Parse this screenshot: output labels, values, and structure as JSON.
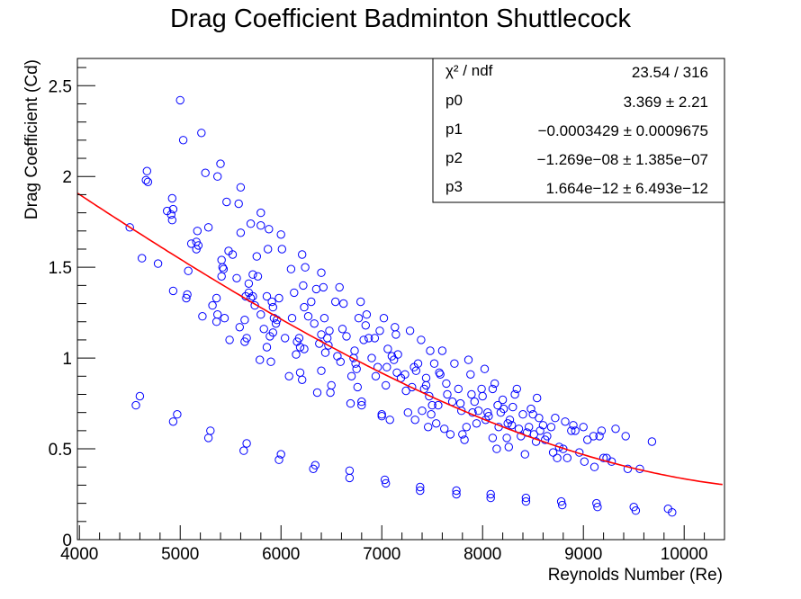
{
  "chart_data": {
    "type": "scatter",
    "title": "Drag Coefficient Badminton Shuttlecock",
    "xlabel": "Reynolds Number (Re)",
    "ylabel": "Drag Coefficient (Cd)",
    "xlim": [
      3980,
      10400
    ],
    "ylim": [
      0,
      2.65
    ],
    "x_ticks": [
      4000,
      5000,
      6000,
      7000,
      8000,
      9000,
      10000
    ],
    "x_tick_labels": [
      "4000",
      "5000",
      "6000",
      "7000",
      "8000",
      "9000",
      "10000"
    ],
    "y_ticks": [
      0,
      0.5,
      1,
      1.5,
      2,
      2.5
    ],
    "y_tick_labels": [
      "0",
      "0.5",
      "1",
      "1.5",
      "2",
      "2.5"
    ],
    "grid": false,
    "colors": {
      "points": "#0000ff",
      "fit": "#ff0000",
      "axes": "#000000"
    },
    "fit": {
      "name": "pol3",
      "p0": 3.369,
      "p1": -0.0003429,
      "p2": -1.269e-08,
      "p3": 1.664e-12,
      "x_range": [
        3980,
        10380
      ]
    },
    "stats_box": {
      "placement": "top-right",
      "rows": [
        {
          "label": "χ² / ndf",
          "value": "23.54 / 316"
        },
        {
          "label": "p0",
          "value": "3.369 ±  2.21"
        },
        {
          "label": "p1",
          "value": "−0.0003429 ± 0.0009675"
        },
        {
          "label": "p2",
          "value": "−1.269e−08 ± 1.385e−07"
        },
        {
          "label": "p3",
          "value": "1.664e−12 ± 6.493e−12"
        }
      ]
    },
    "points": [
      [
        4500,
        1.72
      ],
      [
        4560,
        0.74
      ],
      [
        4600,
        0.79
      ],
      [
        4620,
        1.55
      ],
      [
        4660,
        1.98
      ],
      [
        4670,
        2.03
      ],
      [
        4680,
        1.97
      ],
      [
        4780,
        1.52
      ],
      [
        4870,
        1.81
      ],
      [
        4910,
        1.79
      ],
      [
        4920,
        1.88
      ],
      [
        4920,
        1.76
      ],
      [
        4930,
        1.82
      ],
      [
        4930,
        1.37
      ],
      [
        4930,
        0.65
      ],
      [
        4970,
        0.69
      ],
      [
        5000,
        2.42
      ],
      [
        5030,
        2.2
      ],
      [
        5060,
        1.33
      ],
      [
        5070,
        1.35
      ],
      [
        5080,
        1.48
      ],
      [
        5110,
        1.63
      ],
      [
        5160,
        1.64
      ],
      [
        5160,
        1.6
      ],
      [
        5170,
        1.7
      ],
      [
        5180,
        1.62
      ],
      [
        5210,
        2.24
      ],
      [
        5220,
        1.23
      ],
      [
        5250,
        2.02
      ],
      [
        5280,
        1.72
      ],
      [
        5280,
        0.56
      ],
      [
        5300,
        0.6
      ],
      [
        5320,
        1.29
      ],
      [
        5360,
        1.33
      ],
      [
        5360,
        1.2
      ],
      [
        5370,
        1.24
      ],
      [
        5370,
        2.0
      ],
      [
        5400,
        2.07
      ],
      [
        5410,
        1.54
      ],
      [
        5410,
        1.45
      ],
      [
        5420,
        1.5
      ],
      [
        5430,
        1.49
      ],
      [
        5440,
        1.22
      ],
      [
        5460,
        1.86
      ],
      [
        5480,
        1.59
      ],
      [
        5490,
        1.1
      ],
      [
        5520,
        1.57
      ],
      [
        5560,
        1.44
      ],
      [
        5580,
        1.85
      ],
      [
        5590,
        1.17
      ],
      [
        5600,
        1.94
      ],
      [
        5600,
        1.69
      ],
      [
        5630,
        0.49
      ],
      [
        5640,
        1.21
      ],
      [
        5640,
        1.09
      ],
      [
        5650,
        1.34
      ],
      [
        5660,
        0.53
      ],
      [
        5660,
        1.11
      ],
      [
        5680,
        1.41
      ],
      [
        5680,
        1.36
      ],
      [
        5700,
        1.33
      ],
      [
        5700,
        1.74
      ],
      [
        5720,
        1.34
      ],
      [
        5720,
        1.46
      ],
      [
        5740,
        1.29
      ],
      [
        5760,
        1.56
      ],
      [
        5770,
        1.45
      ],
      [
        5790,
        0.99
      ],
      [
        5800,
        1.24
      ],
      [
        5800,
        1.8
      ],
      [
        5800,
        1.73
      ],
      [
        5830,
        1.16
      ],
      [
        5860,
        1.06
      ],
      [
        5860,
        1.34
      ],
      [
        5870,
        1.6
      ],
      [
        5880,
        1.71
      ],
      [
        5890,
        1.12
      ],
      [
        5900,
        0.98
      ],
      [
        5910,
        1.31
      ],
      [
        5920,
        1.28
      ],
      [
        5920,
        1.14
      ],
      [
        5930,
        1.22
      ],
      [
        5950,
        1.19
      ],
      [
        5960,
        1.21
      ],
      [
        5980,
        0.44
      ],
      [
        5980,
        1.33
      ],
      [
        6000,
        0.47
      ],
      [
        6000,
        1.68
      ],
      [
        6010,
        1.6
      ],
      [
        6040,
        1.11
      ],
      [
        6080,
        0.9
      ],
      [
        6100,
        1.49
      ],
      [
        6110,
        1.22
      ],
      [
        6130,
        1.36
      ],
      [
        6150,
        1.02
      ],
      [
        6160,
        1.09
      ],
      [
        6180,
        1.11
      ],
      [
        6190,
        0.92
      ],
      [
        6190,
        1.06
      ],
      [
        6210,
        1.57
      ],
      [
        6210,
        0.88
      ],
      [
        6220,
        1.4
      ],
      [
        6230,
        1.28
      ],
      [
        6230,
        1.05
      ],
      [
        6240,
        1.5
      ],
      [
        6270,
        1.23
      ],
      [
        6300,
        1.31
      ],
      [
        6320,
        0.39
      ],
      [
        6330,
        1.19
      ],
      [
        6340,
        0.41
      ],
      [
        6350,
        1.38
      ],
      [
        6360,
        0.81
      ],
      [
        6380,
        1.08
      ],
      [
        6400,
        1.47
      ],
      [
        6400,
        1.13
      ],
      [
        6400,
        0.93
      ],
      [
        6420,
        1.39
      ],
      [
        6430,
        1.22
      ],
      [
        6440,
        1.03
      ],
      [
        6460,
        1.11
      ],
      [
        6470,
        1.07
      ],
      [
        6480,
        1.15
      ],
      [
        6490,
        0.81
      ],
      [
        6500,
        0.85
      ],
      [
        6540,
        1.31
      ],
      [
        6560,
        1.01
      ],
      [
        6580,
        1.39
      ],
      [
        6590,
        0.98
      ],
      [
        6610,
        1.16
      ],
      [
        6620,
        1.3
      ],
      [
        6650,
        1.12
      ],
      [
        6680,
        0.38
      ],
      [
        6680,
        0.34
      ],
      [
        6690,
        0.75
      ],
      [
        6700,
        0.9
      ],
      [
        6720,
        1.0
      ],
      [
        6730,
        1.04
      ],
      [
        6740,
        0.97
      ],
      [
        6750,
        0.94
      ],
      [
        6760,
        0.84
      ],
      [
        6770,
        1.22
      ],
      [
        6790,
        1.31
      ],
      [
        6800,
        0.74
      ],
      [
        6800,
        0.76
      ],
      [
        6820,
        1.1
      ],
      [
        6840,
        1.18
      ],
      [
        6850,
        1.24
      ],
      [
        6870,
        1.11
      ],
      [
        6900,
        1.0
      ],
      [
        6930,
        1.11
      ],
      [
        6940,
        0.9
      ],
      [
        6960,
        0.95
      ],
      [
        6980,
        1.15
      ],
      [
        7000,
        0.69
      ],
      [
        7000,
        0.68
      ],
      [
        7020,
        1.22
      ],
      [
        7030,
        0.33
      ],
      [
        7040,
        0.31
      ],
      [
        7040,
        0.85
      ],
      [
        7050,
        0.95
      ],
      [
        7060,
        1.05
      ],
      [
        7080,
        0.66
      ],
      [
        7100,
        1.01
      ],
      [
        7120,
        0.99
      ],
      [
        7130,
        1.17
      ],
      [
        7140,
        1.13
      ],
      [
        7150,
        0.92
      ],
      [
        7160,
        1.02
      ],
      [
        7190,
        0.89
      ],
      [
        7230,
        0.91
      ],
      [
        7240,
        0.82
      ],
      [
        7260,
        0.7
      ],
      [
        7280,
        1.15
      ],
      [
        7300,
        0.84
      ],
      [
        7320,
        0.95
      ],
      [
        7330,
        0.66
      ],
      [
        7340,
        0.93
      ],
      [
        7360,
        0.97
      ],
      [
        7380,
        0.29
      ],
      [
        7380,
        0.27
      ],
      [
        7390,
        1.1
      ],
      [
        7400,
        0.71
      ],
      [
        7420,
        0.83
      ],
      [
        7440,
        0.89
      ],
      [
        7440,
        0.85
      ],
      [
        7460,
        0.62
      ],
      [
        7470,
        0.79
      ],
      [
        7480,
        1.04
      ],
      [
        7490,
        0.69
      ],
      [
        7500,
        0.74
      ],
      [
        7520,
        0.97
      ],
      [
        7540,
        0.64
      ],
      [
        7560,
        0.74
      ],
      [
        7570,
        0.92
      ],
      [
        7580,
        0.91
      ],
      [
        7600,
        1.04
      ],
      [
        7620,
        0.61
      ],
      [
        7640,
        0.86
      ],
      [
        7650,
        0.8
      ],
      [
        7680,
        0.58
      ],
      [
        7700,
        0.76
      ],
      [
        7720,
        0.97
      ],
      [
        7740,
        0.27
      ],
      [
        7740,
        0.25
      ],
      [
        7760,
        0.83
      ],
      [
        7780,
        0.75
      ],
      [
        7790,
        0.71
      ],
      [
        7800,
        0.58
      ],
      [
        7820,
        0.55
      ],
      [
        7840,
        0.62
      ],
      [
        7860,
        0.99
      ],
      [
        7880,
        0.91
      ],
      [
        7890,
        0.8
      ],
      [
        7900,
        0.7
      ],
      [
        7920,
        0.76
      ],
      [
        7940,
        0.64
      ],
      [
        7960,
        0.71
      ],
      [
        7990,
        0.83
      ],
      [
        8000,
        0.79
      ],
      [
        8020,
        0.94
      ],
      [
        8030,
        0.66
      ],
      [
        8050,
        0.7
      ],
      [
        8060,
        0.68
      ],
      [
        8080,
        0.25
      ],
      [
        8080,
        0.23
      ],
      [
        8100,
        0.83
      ],
      [
        8100,
        0.56
      ],
      [
        8120,
        0.86
      ],
      [
        8140,
        0.5
      ],
      [
        8150,
        0.74
      ],
      [
        8160,
        0.62
      ],
      [
        8180,
        0.7
      ],
      [
        8200,
        0.77
      ],
      [
        8210,
        0.72
      ],
      [
        8240,
        0.56
      ],
      [
        8250,
        0.64
      ],
      [
        8260,
        0.51
      ],
      [
        8270,
        0.66
      ],
      [
        8290,
        0.63
      ],
      [
        8300,
        0.73
      ],
      [
        8320,
        0.8
      ],
      [
        8340,
        0.83
      ],
      [
        8360,
        0.61
      ],
      [
        8380,
        0.57
      ],
      [
        8400,
        0.69
      ],
      [
        8420,
        0.47
      ],
      [
        8430,
        0.23
      ],
      [
        8430,
        0.21
      ],
      [
        8440,
        0.59
      ],
      [
        8460,
        0.62
      ],
      [
        8480,
        0.72
      ],
      [
        8500,
        0.69
      ],
      [
        8510,
        0.58
      ],
      [
        8530,
        0.54
      ],
      [
        8540,
        0.78
      ],
      [
        8560,
        0.67
      ],
      [
        8570,
        0.6
      ],
      [
        8600,
        0.63
      ],
      [
        8620,
        0.55
      ],
      [
        8640,
        0.57
      ],
      [
        8680,
        0.62
      ],
      [
        8700,
        0.48
      ],
      [
        8720,
        0.67
      ],
      [
        8740,
        0.45
      ],
      [
        8760,
        0.51
      ],
      [
        8780,
        0.21
      ],
      [
        8790,
        0.19
      ],
      [
        8800,
        0.5
      ],
      [
        8820,
        0.65
      ],
      [
        8840,
        0.45
      ],
      [
        8880,
        0.6
      ],
      [
        8900,
        0.63
      ],
      [
        8920,
        0.6
      ],
      [
        8960,
        0.48
      ],
      [
        9000,
        0.62
      ],
      [
        9010,
        0.43
      ],
      [
        9040,
        0.55
      ],
      [
        9100,
        0.57
      ],
      [
        9110,
        0.4
      ],
      [
        9130,
        0.2
      ],
      [
        9140,
        0.18
      ],
      [
        9160,
        0.57
      ],
      [
        9180,
        0.6
      ],
      [
        9200,
        0.45
      ],
      [
        9230,
        0.45
      ],
      [
        9280,
        0.43
      ],
      [
        9320,
        0.61
      ],
      [
        9420,
        0.57
      ],
      [
        9440,
        0.39
      ],
      [
        9500,
        0.18
      ],
      [
        9520,
        0.16
      ],
      [
        9560,
        0.39
      ],
      [
        9680,
        0.54
      ],
      [
        9840,
        0.17
      ],
      [
        9880,
        0.15
      ]
    ]
  }
}
